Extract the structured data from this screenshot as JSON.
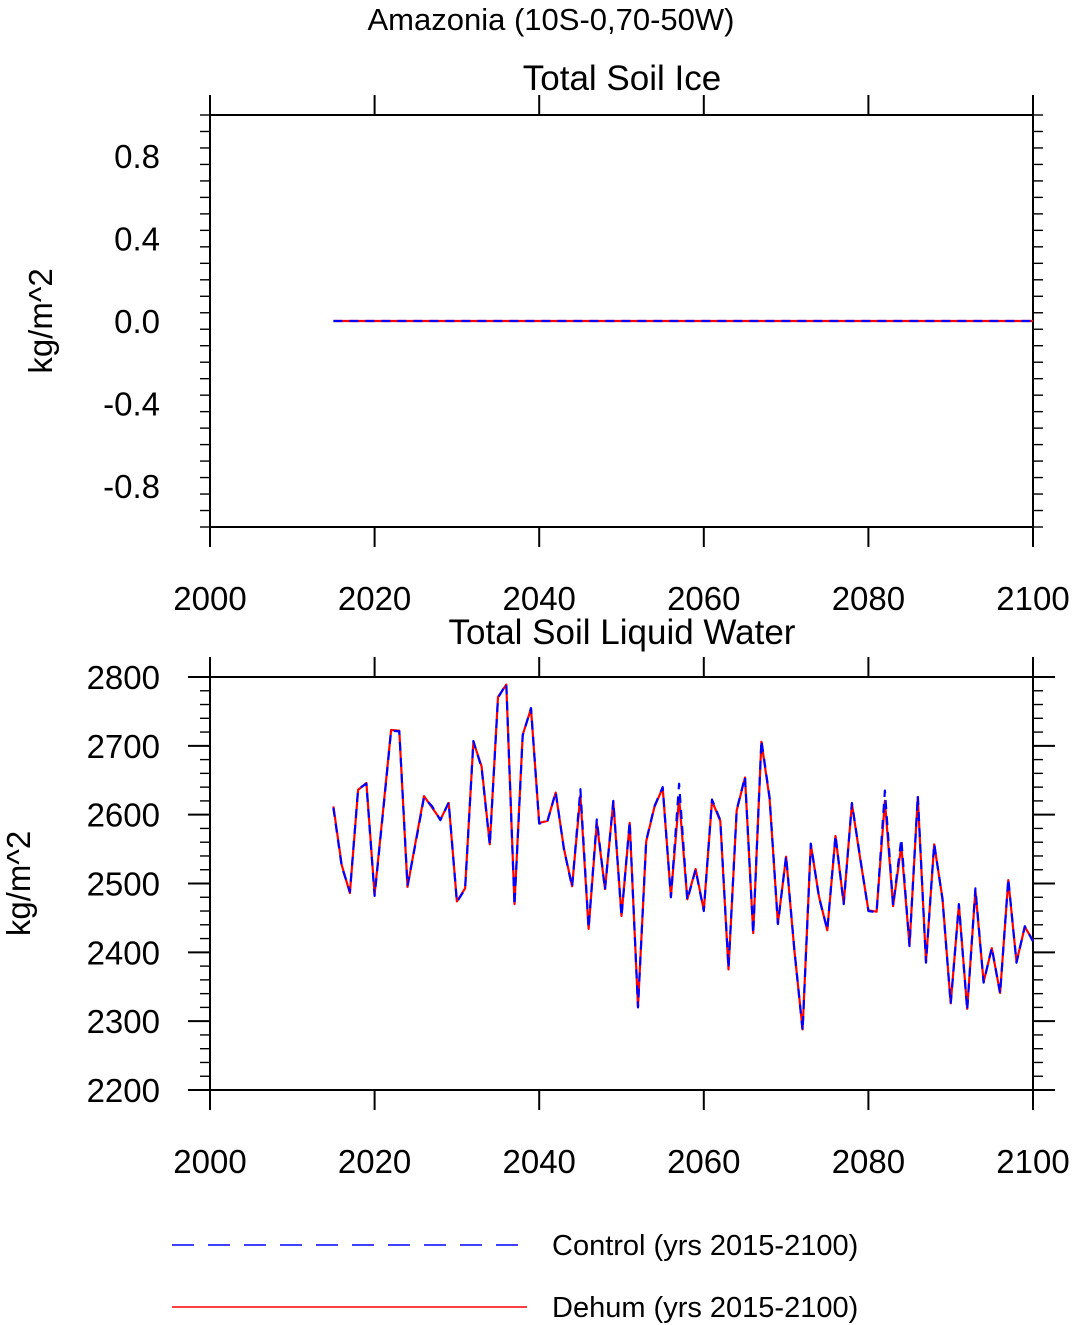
{
  "figure_title": "Amazonia (10S-0,70-50W)",
  "colors": {
    "control": "#0000ff",
    "dehum": "#ff0000",
    "axis": "#000000"
  },
  "legend": [
    {
      "key": "control",
      "label": "Control (yrs 2015-2100)",
      "style": "dashed",
      "color": "#0000ff"
    },
    {
      "key": "dehum",
      "label": "Dehum (yrs 2015-2100)",
      "style": "solid",
      "color": "#ff0000"
    }
  ],
  "chart_data": [
    {
      "type": "line",
      "title": "Total Soil Ice",
      "xlabel": "",
      "ylabel": "kg/m^2",
      "xlim": [
        2000,
        2100
      ],
      "ylim": [
        -1.0,
        1.0
      ],
      "xticks": [
        2000,
        2020,
        2040,
        2060,
        2080,
        2100
      ],
      "xtick_labels": [
        "2000",
        "2020",
        "2040",
        "2060",
        "2080",
        "2100"
      ],
      "yticks": [
        -0.8,
        -0.4,
        0.0,
        0.4,
        0.8
      ],
      "ytick_labels": [
        "-0.8",
        "-0.4",
        "0.0",
        "0.4",
        "0.8"
      ],
      "x_start": 2015,
      "series": [
        {
          "name": "Control (yrs 2015-2100)",
          "color": "#0000ff",
          "style": "dashed",
          "values": [
            0,
            0,
            0,
            0,
            0,
            0,
            0,
            0,
            0,
            0,
            0,
            0,
            0,
            0,
            0,
            0,
            0,
            0,
            0,
            0,
            0,
            0,
            0,
            0,
            0,
            0,
            0,
            0,
            0,
            0,
            0,
            0,
            0,
            0,
            0,
            0,
            0,
            0,
            0,
            0,
            0,
            0,
            0,
            0,
            0,
            0,
            0,
            0,
            0,
            0,
            0,
            0,
            0,
            0,
            0,
            0,
            0,
            0,
            0,
            0,
            0,
            0,
            0,
            0,
            0,
            0,
            0,
            0,
            0,
            0,
            0,
            0,
            0,
            0,
            0,
            0,
            0,
            0,
            0,
            0,
            0,
            0,
            0,
            0,
            0,
            0
          ]
        },
        {
          "name": "Dehum (yrs 2015-2100)",
          "color": "#ff0000",
          "style": "solid",
          "values": [
            0,
            0,
            0,
            0,
            0,
            0,
            0,
            0,
            0,
            0,
            0,
            0,
            0,
            0,
            0,
            0,
            0,
            0,
            0,
            0,
            0,
            0,
            0,
            0,
            0,
            0,
            0,
            0,
            0,
            0,
            0,
            0,
            0,
            0,
            0,
            0,
            0,
            0,
            0,
            0,
            0,
            0,
            0,
            0,
            0,
            0,
            0,
            0,
            0,
            0,
            0,
            0,
            0,
            0,
            0,
            0,
            0,
            0,
            0,
            0,
            0,
            0,
            0,
            0,
            0,
            0,
            0,
            0,
            0,
            0,
            0,
            0,
            0,
            0,
            0,
            0,
            0,
            0,
            0,
            0,
            0,
            0,
            0,
            0,
            0,
            0
          ]
        }
      ],
      "grid": false,
      "legend_position": "bottom"
    },
    {
      "type": "line",
      "title": "Total Soil Liquid Water",
      "xlabel": "",
      "ylabel": "kg/m^2",
      "xlim": [
        2000,
        2100
      ],
      "ylim": [
        2200,
        2800
      ],
      "xticks": [
        2000,
        2020,
        2040,
        2060,
        2080,
        2100
      ],
      "xtick_labels": [
        "2000",
        "2020",
        "2040",
        "2060",
        "2080",
        "2100"
      ],
      "yticks": [
        2200,
        2300,
        2400,
        2500,
        2600,
        2700,
        2800
      ],
      "ytick_labels": [
        "2200",
        "2300",
        "2400",
        "2500",
        "2600",
        "2700",
        "2800"
      ],
      "x_start": 2015,
      "series": [
        {
          "name": "Control (yrs 2015-2100)",
          "color": "#0000ff",
          "style": "dashed",
          "values": [
            2610,
            2525,
            2488,
            2637,
            2645,
            2482,
            2600,
            2722,
            2721,
            2497,
            2560,
            2625,
            2612,
            2592,
            2618,
            2473,
            2492,
            2707,
            2668,
            2556,
            2770,
            2790,
            2468,
            2715,
            2755,
            2587,
            2590,
            2633,
            2550,
            2495,
            2637,
            2435,
            2593,
            2491,
            2620,
            2452,
            2590,
            2320,
            2562,
            2612,
            2640,
            2480,
            2645,
            2476,
            2520,
            2460,
            2622,
            2592,
            2377,
            2607,
            2655,
            2427,
            2708,
            2625,
            2441,
            2540,
            2405,
            2286,
            2558,
            2480,
            2433,
            2570,
            2470,
            2617,
            2537,
            2460,
            2458,
            2635,
            2468,
            2565,
            2409,
            2628,
            2385,
            2558,
            2477,
            2325,
            2470,
            2316,
            2493,
            2356,
            2407,
            2340,
            2507,
            2385,
            2438,
            2416
          ]
        },
        {
          "name": "Dehum (yrs 2015-2100)",
          "color": "#ff0000",
          "style": "solid",
          "values": [
            2612,
            2527,
            2486,
            2636,
            2646,
            2484,
            2602,
            2723,
            2722,
            2495,
            2562,
            2627,
            2610,
            2593,
            2617,
            2474,
            2493,
            2706,
            2670,
            2557,
            2771,
            2789,
            2470,
            2716,
            2754,
            2588,
            2591,
            2632,
            2551,
            2496,
            2628,
            2434,
            2588,
            2492,
            2619,
            2453,
            2588,
            2321,
            2561,
            2611,
            2639,
            2481,
            2625,
            2477,
            2521,
            2461,
            2620,
            2591,
            2375,
            2606,
            2654,
            2428,
            2706,
            2623,
            2442,
            2539,
            2404,
            2288,
            2557,
            2481,
            2432,
            2569,
            2471,
            2616,
            2536,
            2461,
            2459,
            2620,
            2467,
            2555,
            2410,
            2625,
            2386,
            2557,
            2478,
            2326,
            2469,
            2318,
            2490,
            2357,
            2406,
            2341,
            2505,
            2386,
            2437,
            2417
          ]
        }
      ],
      "grid": false,
      "legend_position": "bottom"
    }
  ]
}
